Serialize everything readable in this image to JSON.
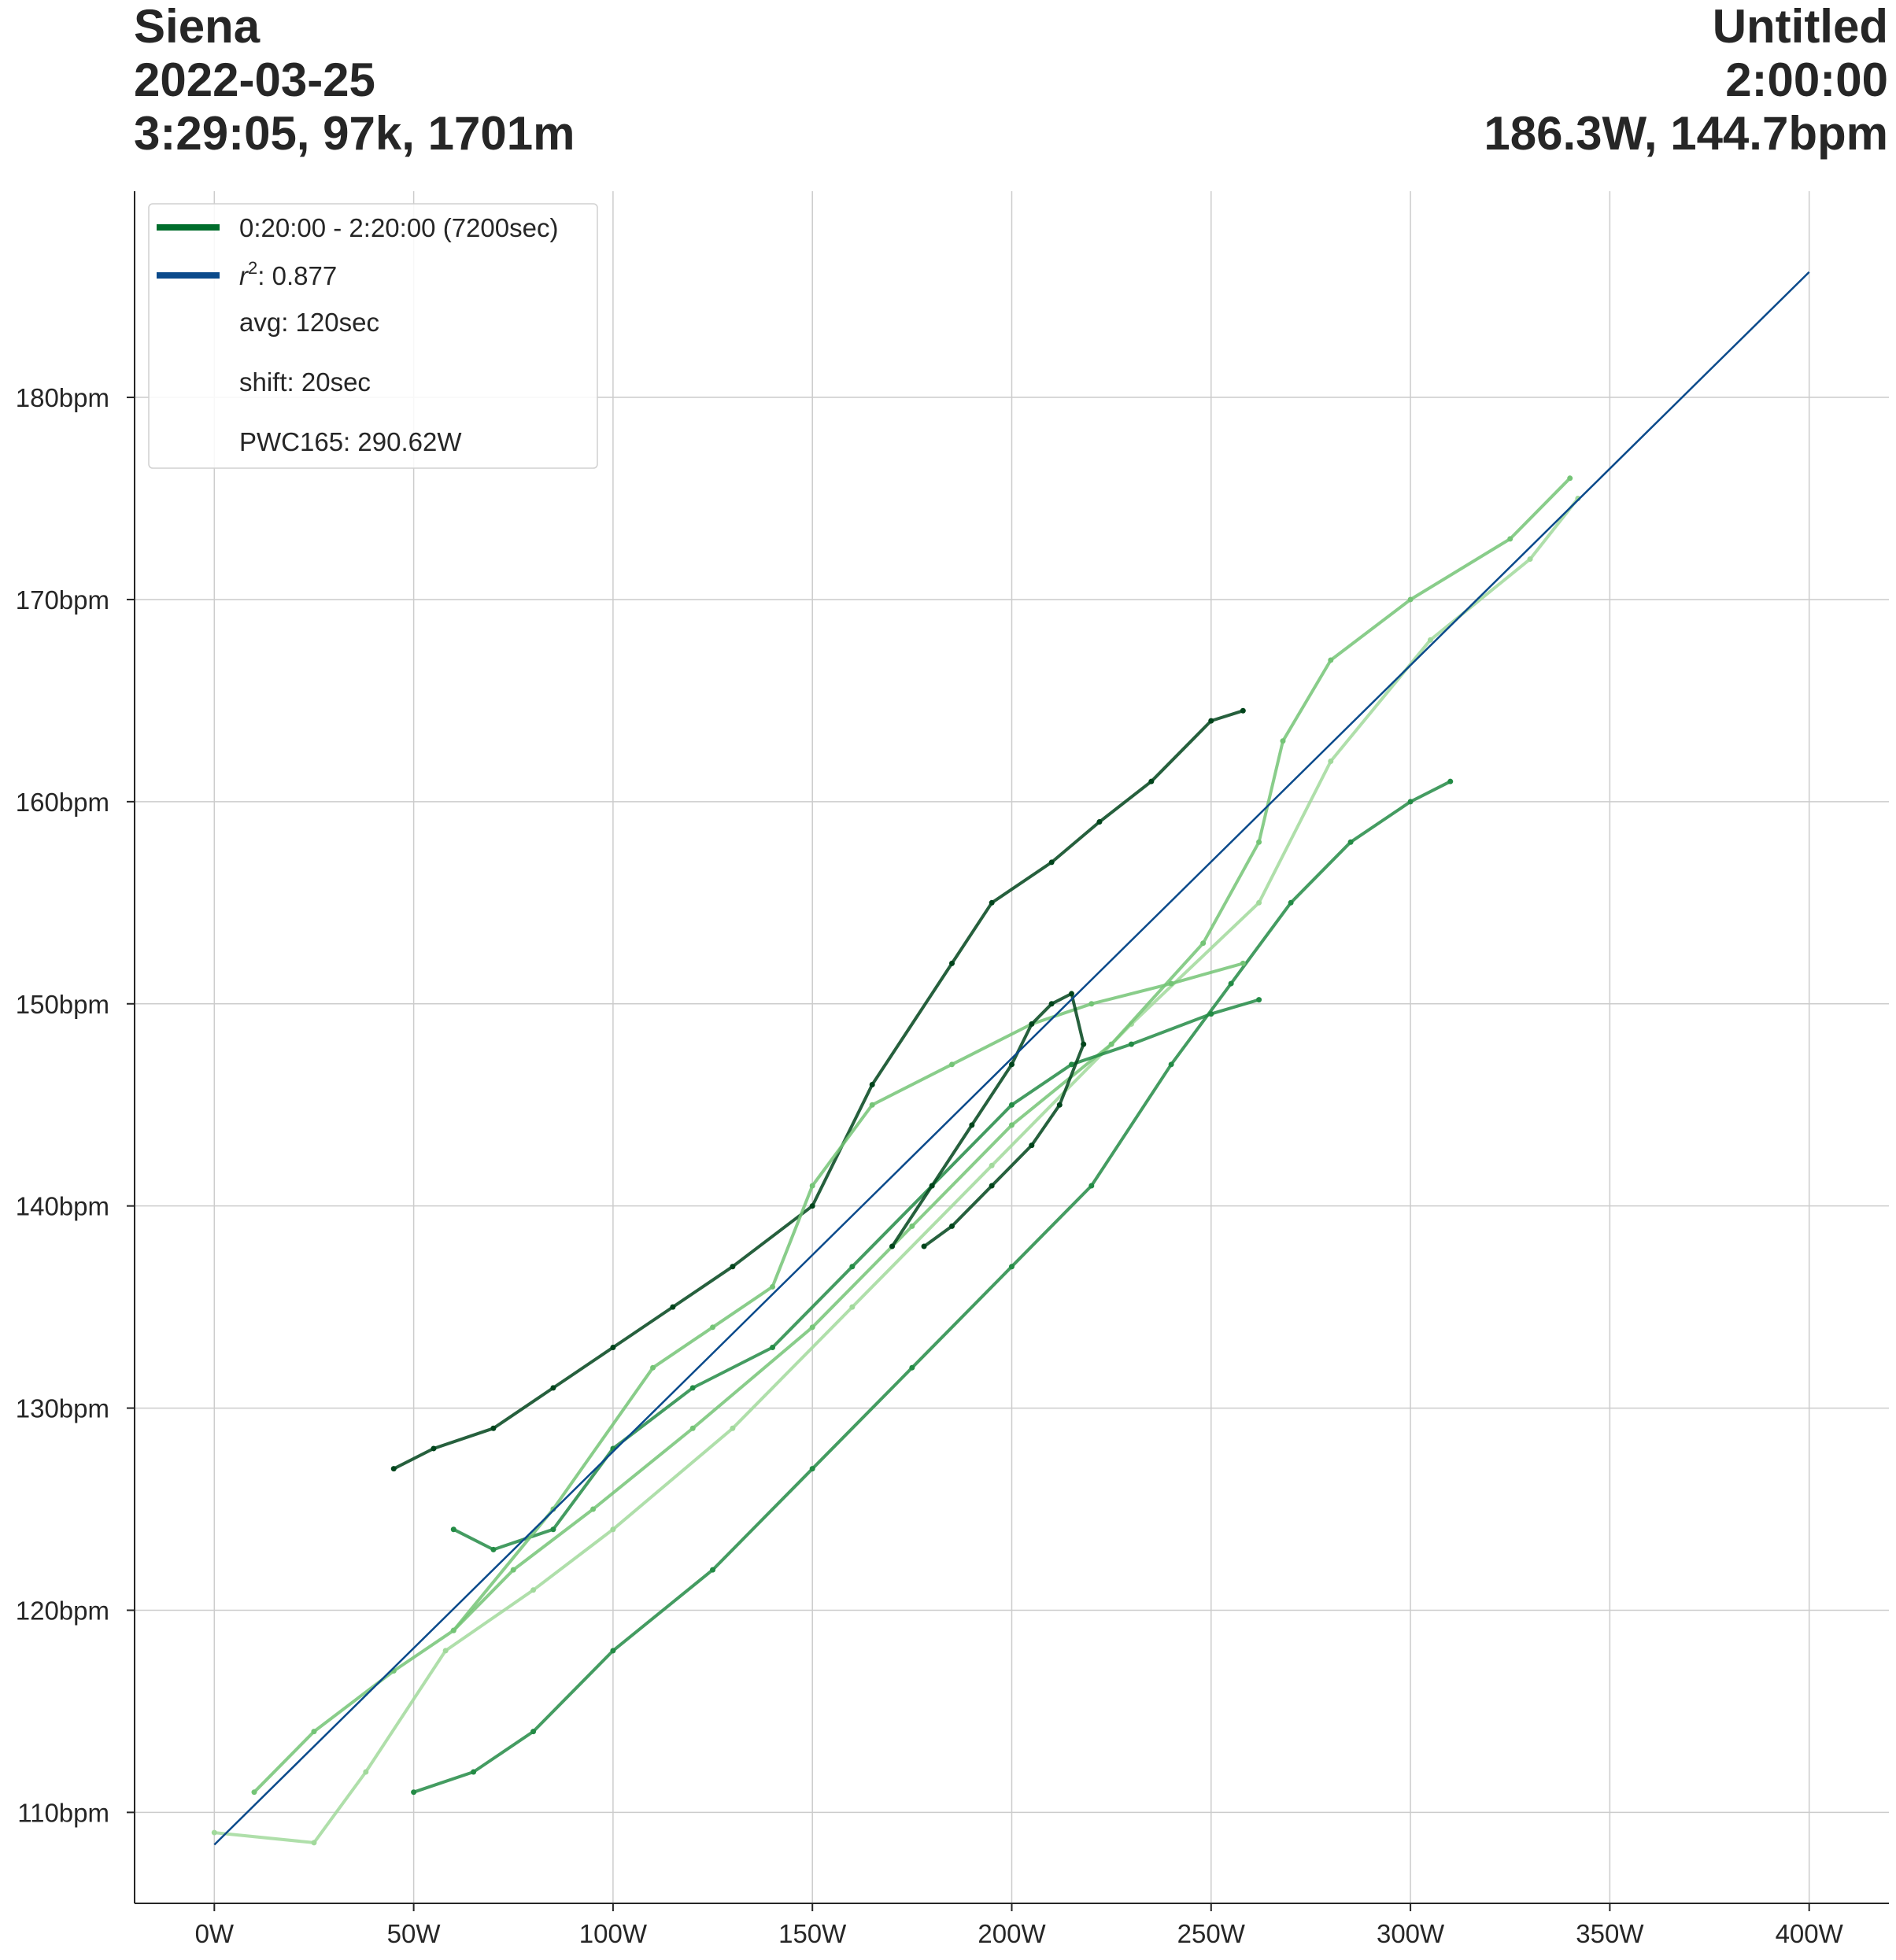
{
  "header": {
    "left": [
      "Siena",
      "2022-03-25",
      "3:29:05, 97k, 1701m"
    ],
    "right": [
      "Untitled",
      "2:00:00",
      "186.3W, 144.7bpm"
    ]
  },
  "colors": {
    "fit_line": "#0b4a8b",
    "legend_range": "#006d2c",
    "series_dark": "#00441b",
    "series_mid": "#238b45",
    "series_light": "#74c476",
    "series_lightest": "#a1d99b"
  },
  "legend": {
    "range_label": "0:20:00 - 2:20:00 (7200sec)",
    "r2_label": ": 0.877",
    "r2_symbol": "r",
    "avg_label": "avg: 120sec",
    "shift_label": "shift: 20sec",
    "pwc_label": "PWC165: 290.62W"
  },
  "chart_data": {
    "type": "scatter",
    "xlabel": "",
    "ylabel": "",
    "xlim": [
      -20,
      420
    ],
    "ylim": [
      105.5,
      190.2
    ],
    "x_ticks": [
      0,
      50,
      100,
      150,
      200,
      250,
      300,
      350,
      400
    ],
    "x_tick_labels": [
      "0W",
      "50W",
      "100W",
      "150W",
      "200W",
      "250W",
      "300W",
      "350W",
      "400W"
    ],
    "y_ticks": [
      110,
      120,
      130,
      140,
      150,
      160,
      170,
      180
    ],
    "y_tick_labels": [
      "110bpm",
      "120bpm",
      "130bpm",
      "140bpm",
      "150bpm",
      "160bpm",
      "170bpm",
      "180bpm"
    ],
    "grid": true,
    "legend_position": "top-left",
    "fit_line": {
      "x": [
        0,
        400
      ],
      "y": [
        108.4,
        186.2
      ]
    },
    "series": [
      {
        "color_key": "series_lightest",
        "x": [
          0,
          25,
          38,
          58,
          80,
          100,
          130,
          160,
          195,
          230,
          262,
          280,
          305,
          330,
          342
        ],
        "y": [
          109,
          108.5,
          112,
          118,
          121,
          124,
          129,
          135,
          142,
          149,
          155,
          162,
          168,
          172,
          175
        ]
      },
      {
        "color_key": "series_light",
        "x": [
          10,
          25,
          45,
          60,
          75,
          95,
          120,
          150,
          175,
          200,
          225,
          248,
          262,
          268,
          280,
          300,
          325,
          340
        ],
        "y": [
          111,
          114,
          117,
          119,
          122,
          125,
          129,
          134,
          139,
          144,
          148,
          153,
          158,
          163,
          167,
          170,
          173,
          176
        ]
      },
      {
        "color_key": "series_mid",
        "x": [
          50,
          65,
          80,
          100,
          125,
          150,
          175,
          200,
          220,
          240,
          255,
          270,
          285,
          300,
          310
        ],
        "y": [
          111,
          112,
          114,
          118,
          122,
          127,
          132,
          137,
          141,
          147,
          151,
          155,
          158,
          160,
          161
        ]
      },
      {
        "color_key": "series_dark",
        "x": [
          45,
          55,
          70,
          85,
          100,
          115,
          130,
          150,
          165,
          185,
          195,
          210,
          222,
          235,
          250,
          258
        ],
        "y": [
          127,
          128,
          129,
          131,
          133,
          135,
          137,
          140,
          146,
          152,
          155,
          157,
          159,
          161,
          164,
          164.5
        ]
      },
      {
        "color_key": "series_mid",
        "x": [
          60,
          70,
          85,
          100,
          120,
          140,
          160,
          180,
          200,
          215,
          230,
          250,
          262
        ],
        "y": [
          124,
          123,
          124,
          128,
          131,
          133,
          137,
          141,
          145,
          147,
          148,
          149.5,
          150.2
        ]
      },
      {
        "color_key": "series_light",
        "x": [
          60,
          85,
          110,
          125,
          140,
          150,
          165,
          185,
          205,
          220,
          240,
          258
        ],
        "y": [
          119,
          125,
          132,
          134,
          136,
          141,
          145,
          147,
          149,
          150,
          151,
          152
        ]
      },
      {
        "color_key": "series_dark",
        "x": [
          170,
          180,
          190,
          200,
          205,
          210,
          215,
          218,
          212,
          205,
          195,
          185,
          178
        ],
        "y": [
          138,
          141,
          144,
          147,
          149,
          150,
          150.5,
          148,
          145,
          143,
          141,
          139,
          138
        ]
      }
    ]
  }
}
